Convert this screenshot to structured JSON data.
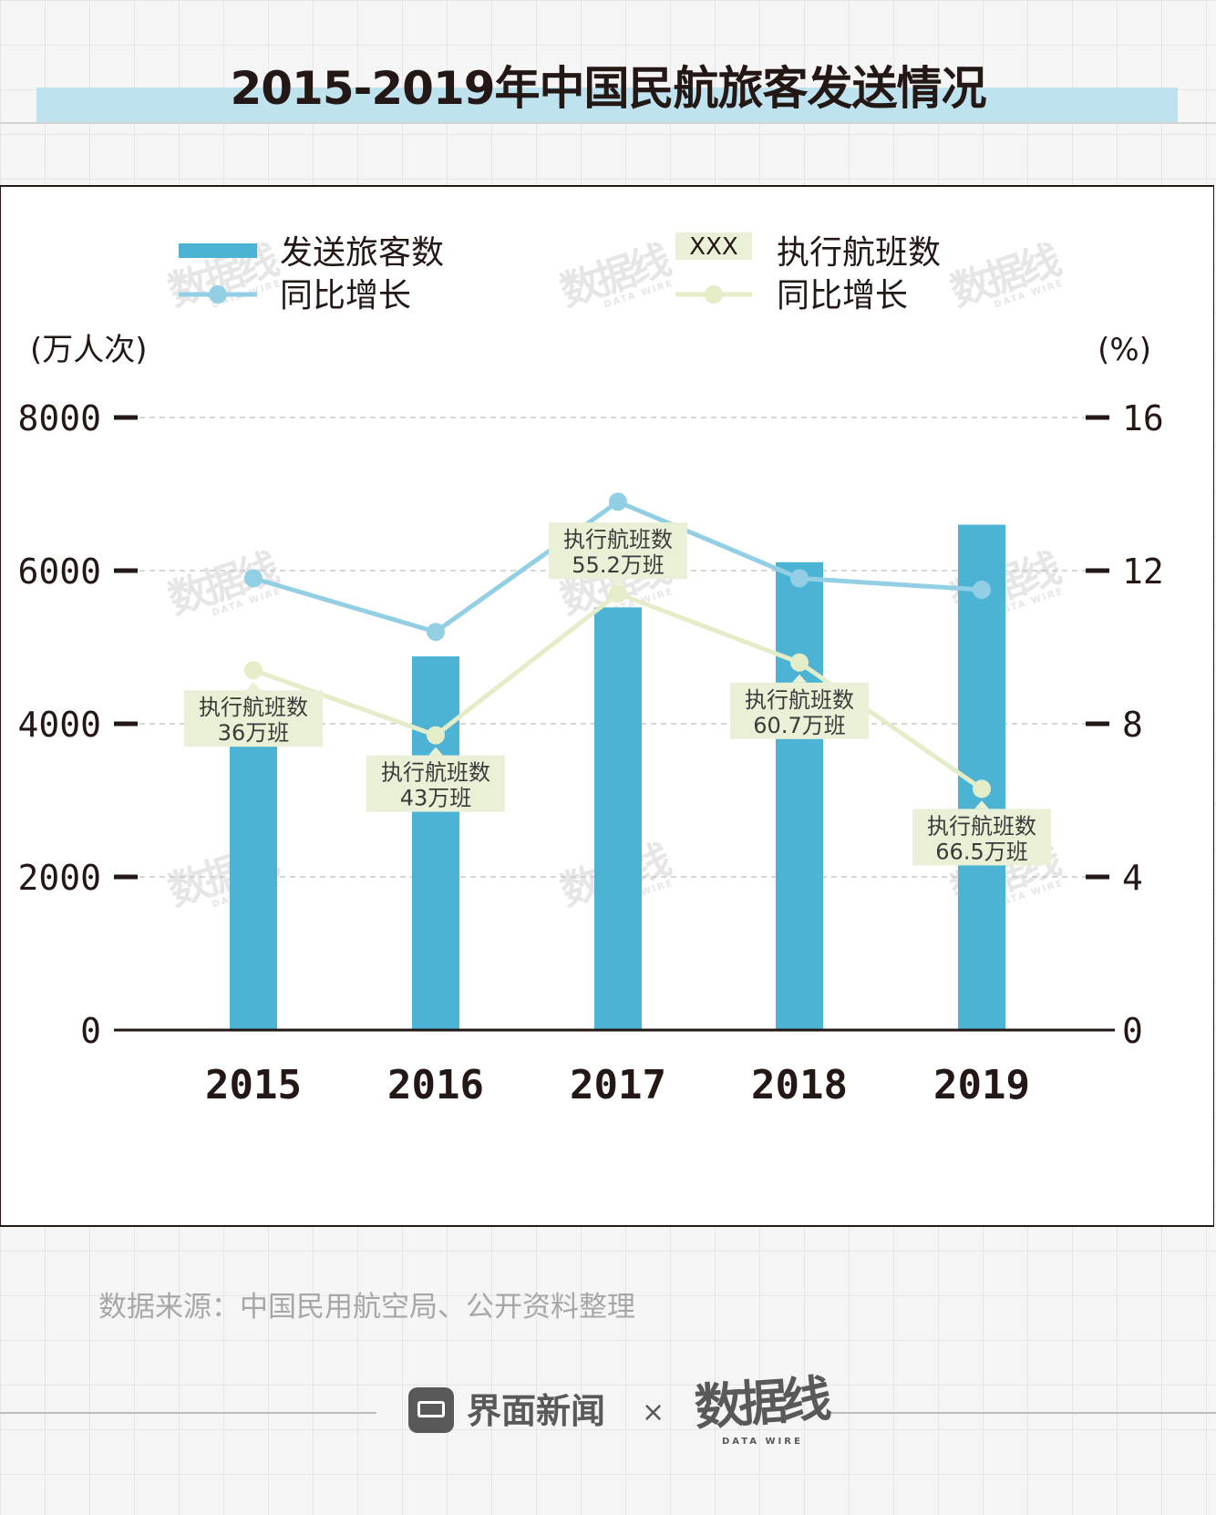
{
  "title": "2015-2019年中国民航旅客发送情况",
  "legend": {
    "passengers": "发送旅客数",
    "passengers_growth": "同比增长",
    "flights_sample": "XXX",
    "flights": "执行航班数",
    "flights_growth": "同比增长"
  },
  "axis": {
    "left_unit": "(万人次)",
    "right_unit": "(%)"
  },
  "watermark": {
    "text": "数据线",
    "sub": "DATA WIRE"
  },
  "colors": {
    "bar": "#4db3d5",
    "passenger_growth_line": "#92cfe4",
    "flight_growth_line": "#e3edc7",
    "label_bg": "#e9f0d6",
    "axis": "#231815"
  },
  "chart_data": {
    "type": "bar+line",
    "title": "2015-2019年中国民航旅客发送情况",
    "categories": [
      "2015",
      "2016",
      "2017",
      "2018",
      "2019"
    ],
    "left_axis": {
      "label": "(万人次)",
      "range": [
        0,
        8000
      ],
      "ticks": [
        0,
        2000,
        4000,
        6000,
        8000
      ]
    },
    "right_axis": {
      "label": "(%)",
      "range": [
        0,
        16
      ],
      "ticks": [
        0,
        4,
        8,
        12,
        16
      ]
    },
    "series": [
      {
        "name": "发送旅客数",
        "type": "bar",
        "axis": "left",
        "values": [
          4360,
          4880,
          5520,
          6110,
          6600
        ]
      },
      {
        "name": "同比增长",
        "type": "line",
        "axis": "right",
        "values": [
          11.8,
          10.4,
          13.8,
          11.8,
          11.5
        ]
      },
      {
        "name": "执行航班数 同比增长",
        "type": "line",
        "axis": "right",
        "values": [
          9.4,
          7.7,
          11.4,
          9.6,
          6.3
        ]
      }
    ],
    "annotations": [
      {
        "category": "2015",
        "label": "执行航班数",
        "value": "36万班"
      },
      {
        "category": "2016",
        "label": "执行航班数",
        "value": "43万班"
      },
      {
        "category": "2017",
        "label": "执行航班数",
        "value": "55.2万班"
      },
      {
        "category": "2018",
        "label": "执行航班数",
        "value": "60.7万班"
      },
      {
        "category": "2019",
        "label": "执行航班数",
        "value": "66.5万班"
      }
    ]
  },
  "source": "数据来源：中国民用航空局、公开资料整理",
  "footer": {
    "brand": "界面新闻",
    "separator": "×",
    "partner": "数据线",
    "partner_sub": "DATA WIRE"
  }
}
